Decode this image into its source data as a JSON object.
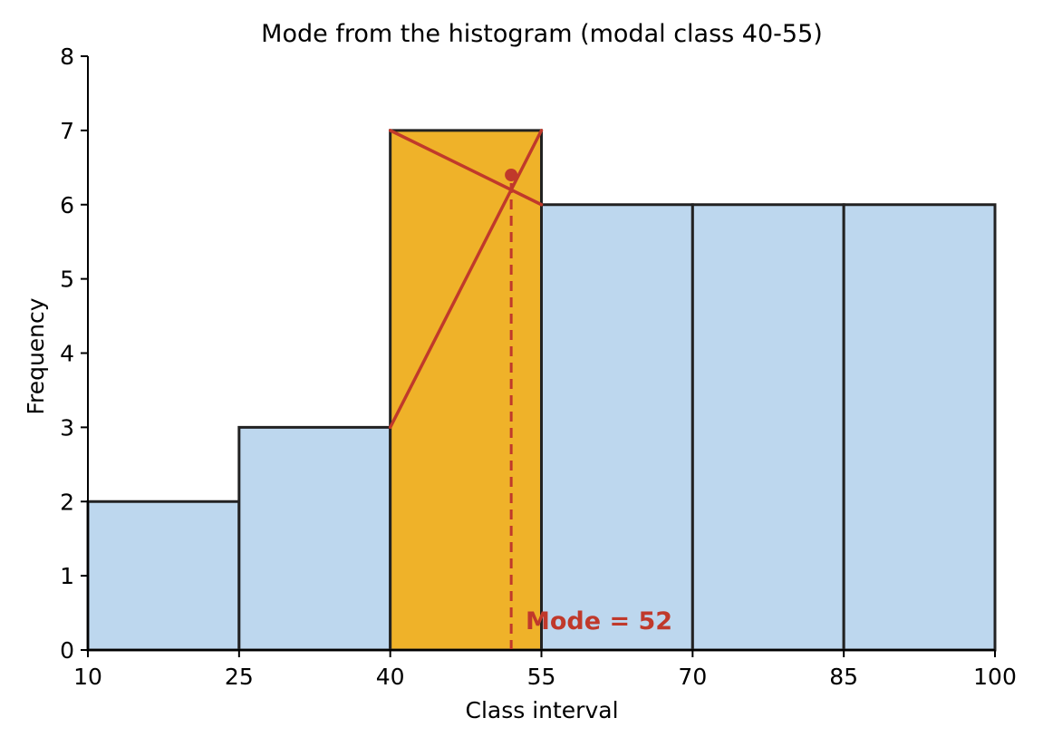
{
  "chart_data": {
    "type": "bar",
    "title": "Mode from the histogram (modal class 40-55)",
    "xlabel": "Class interval",
    "ylabel": "Frequency",
    "xlim": [
      10,
      100
    ],
    "ylim": [
      0,
      8
    ],
    "x_ticks": [
      10,
      25,
      40,
      55,
      70,
      85,
      100
    ],
    "y_ticks": [
      0,
      1,
      2,
      3,
      4,
      5,
      6,
      7,
      8
    ],
    "bins": [
      {
        "start": 10,
        "end": 25,
        "frequency": 2
      },
      {
        "start": 25,
        "end": 40,
        "frequency": 3
      },
      {
        "start": 40,
        "end": 55,
        "frequency": 7,
        "modal": true
      },
      {
        "start": 55,
        "end": 70,
        "frequency": 6
      },
      {
        "start": 70,
        "end": 85,
        "frequency": 6
      },
      {
        "start": 85,
        "end": 100,
        "frequency": 6
      }
    ],
    "construction_lines": [
      {
        "from": [
          40,
          7
        ],
        "to": [
          55,
          6
        ]
      },
      {
        "from": [
          40,
          3
        ],
        "to": [
          55,
          7
        ]
      }
    ],
    "mode_marker": {
      "x": 52,
      "y": 6.4
    },
    "mode_value": 52,
    "annotation": "Mode = 52",
    "grid": false,
    "colors": {
      "bar": "#bdd7ee",
      "modal_bar": "#efb229",
      "edge": "#222222",
      "accent": "#c0392b"
    }
  }
}
